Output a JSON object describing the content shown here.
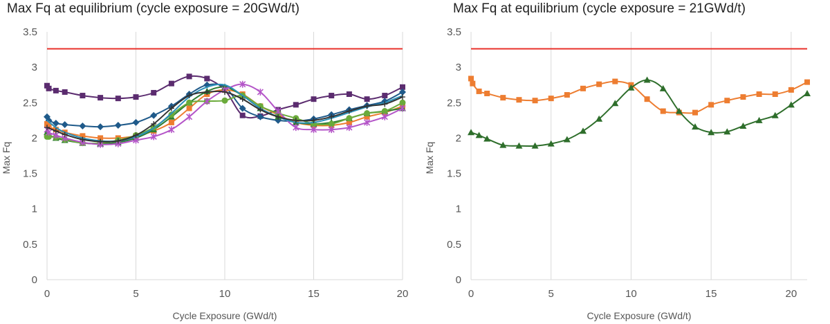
{
  "chart_data": [
    {
      "type": "line",
      "title": "Max Fq at equilibrium (cycle exposure = 20GWd/t)",
      "xlabel": "Cycle Exposure (GWd/t)",
      "ylabel": "Max Fq",
      "xlim": [
        0,
        20
      ],
      "ylim": [
        0,
        3.5
      ],
      "xticks": [
        "0",
        "5",
        "10",
        "15",
        "20"
      ],
      "yticks": [
        "0",
        "0.5",
        "1",
        "1.5",
        "2",
        "2.5",
        "3",
        "3.5"
      ],
      "grid": "vertical",
      "limit_line": {
        "y": 3.26,
        "color": "#e8302a"
      },
      "series": [
        {
          "color": "#5b2c6f",
          "marker": "square",
          "x": [
            0,
            0.1,
            0.5,
            1,
            2,
            3,
            4,
            5,
            6,
            7,
            8,
            9,
            10,
            11,
            12,
            13,
            14,
            15,
            16,
            17,
            18,
            19,
            20
          ],
          "y": [
            2.74,
            2.7,
            2.67,
            2.65,
            2.6,
            2.57,
            2.56,
            2.58,
            2.64,
            2.77,
            2.87,
            2.84,
            2.68,
            2.32,
            2.31,
            2.4,
            2.47,
            2.55,
            2.6,
            2.62,
            2.55,
            2.6,
            2.72
          ]
        },
        {
          "color": "#1f5a8a",
          "marker": "diamond",
          "x": [
            0,
            0.1,
            0.5,
            1,
            2,
            3,
            4,
            5,
            6,
            7,
            8,
            9,
            10,
            11,
            12,
            13,
            14,
            15,
            16,
            17,
            18,
            19,
            20
          ],
          "y": [
            2.3,
            2.25,
            2.21,
            2.19,
            2.17,
            2.16,
            2.18,
            2.22,
            2.32,
            2.45,
            2.62,
            2.75,
            2.72,
            2.42,
            2.3,
            2.25,
            2.24,
            2.27,
            2.33,
            2.4,
            2.46,
            2.52,
            2.65
          ]
        },
        {
          "color": "#ed7d31",
          "marker": "square",
          "x": [
            0,
            0.1,
            0.5,
            1,
            2,
            3,
            4,
            5,
            6,
            7,
            8,
            9,
            10,
            11,
            12,
            13,
            14,
            15,
            16,
            17,
            18,
            19,
            20
          ],
          "y": [
            2.2,
            2.16,
            2.12,
            2.08,
            2.03,
            2.0,
            2.0,
            2.03,
            2.1,
            2.22,
            2.42,
            2.62,
            2.68,
            2.62,
            2.45,
            2.33,
            2.22,
            2.18,
            2.18,
            2.22,
            2.3,
            2.36,
            2.45
          ]
        },
        {
          "color": "#2e7d32",
          "marker": "triangle",
          "x": [
            0,
            0.1,
            0.5,
            1,
            2,
            3,
            4,
            5,
            6,
            7,
            8,
            9,
            10,
            11,
            12,
            13,
            14,
            15,
            16,
            17,
            18,
            19,
            20
          ],
          "y": [
            2.08,
            2.05,
            2.0,
            1.97,
            1.93,
            1.92,
            1.94,
            2.0,
            2.12,
            2.3,
            2.5,
            2.66,
            2.72,
            2.6,
            2.42,
            2.3,
            2.22,
            2.2,
            2.22,
            2.28,
            2.35,
            2.38,
            2.42
          ]
        },
        {
          "color": "#6aaa3a",
          "marker": "circle",
          "x": [
            0,
            0.1,
            0.5,
            1,
            2,
            3,
            4,
            5,
            6,
            7,
            8,
            9,
            10,
            11,
            12,
            13,
            14,
            15,
            16,
            17,
            18,
            19,
            20
          ],
          "y": [
            2.02,
            2.02,
            2.01,
            1.98,
            1.93,
            1.93,
            1.97,
            2.04,
            2.15,
            2.33,
            2.5,
            2.52,
            2.53,
            2.6,
            2.45,
            2.35,
            2.28,
            2.2,
            2.2,
            2.28,
            2.35,
            2.38,
            2.5
          ]
        },
        {
          "color": "#b455c8",
          "marker": "star",
          "x": [
            0,
            0.1,
            0.5,
            1,
            2,
            3,
            4,
            5,
            6,
            7,
            8,
            9,
            10,
            11,
            12,
            13,
            14,
            15,
            16,
            17,
            18,
            19,
            20
          ],
          "y": [
            2.12,
            2.08,
            2.04,
            2.0,
            1.94,
            1.91,
            1.92,
            1.97,
            2.02,
            2.12,
            2.3,
            2.52,
            2.68,
            2.76,
            2.65,
            2.38,
            2.15,
            2.12,
            2.12,
            2.15,
            2.22,
            2.3,
            2.42
          ]
        },
        {
          "color": "#2a8fb8",
          "marker": "none",
          "x": [
            0,
            0.5,
            1,
            2,
            3,
            4,
            5,
            6,
            7,
            8,
            9,
            10,
            11,
            12,
            13,
            14,
            15,
            16,
            17,
            18,
            19,
            20
          ],
          "y": [
            2.25,
            2.15,
            2.08,
            2.0,
            1.96,
            1.96,
            2.02,
            2.14,
            2.35,
            2.58,
            2.72,
            2.75,
            2.6,
            2.42,
            2.3,
            2.22,
            2.22,
            2.28,
            2.36,
            2.44,
            2.5,
            2.6
          ]
        },
        {
          "color": "#333333",
          "marker": "plus",
          "x": [
            0,
            0.5,
            1,
            2,
            3,
            4,
            5,
            6,
            7,
            8,
            9,
            10,
            11,
            12,
            13,
            14,
            15,
            16,
            17,
            18,
            19,
            20
          ],
          "y": [
            2.15,
            2.1,
            2.05,
            1.98,
            1.95,
            1.96,
            2.04,
            2.2,
            2.42,
            2.6,
            2.65,
            2.65,
            2.55,
            2.4,
            2.3,
            2.25,
            2.25,
            2.3,
            2.38,
            2.45,
            2.48,
            2.58
          ]
        }
      ]
    },
    {
      "type": "line",
      "title": "Max Fq at equilibrium (cycle exposure = 21GWd/t)",
      "xlabel": "Cycle Exposure (GWd/t)",
      "ylabel": "Max Fq",
      "xlim": [
        0,
        21
      ],
      "ylim": [
        0,
        3.5
      ],
      "xticks": [
        "0",
        "5",
        "10",
        "15",
        "20"
      ],
      "yticks": [
        "0",
        "0.5",
        "1",
        "1.5",
        "2",
        "2.5",
        "3",
        "3.5"
      ],
      "grid": "vertical",
      "limit_line": {
        "y": 3.26,
        "color": "#e8302a"
      },
      "series": [
        {
          "color": "#ed7d31",
          "marker": "square",
          "x": [
            0,
            0.1,
            0.5,
            1,
            2,
            3,
            4,
            5,
            6,
            7,
            8,
            9,
            10,
            11,
            12,
            13,
            14,
            15,
            16,
            17,
            18,
            19,
            20,
            21
          ],
          "y": [
            2.84,
            2.77,
            2.66,
            2.63,
            2.57,
            2.54,
            2.53,
            2.56,
            2.61,
            2.7,
            2.76,
            2.8,
            2.75,
            2.55,
            2.38,
            2.36,
            2.36,
            2.47,
            2.53,
            2.58,
            2.62,
            2.62,
            2.68,
            2.79
          ]
        },
        {
          "color": "#2e6e2b",
          "marker": "triangle",
          "x": [
            0,
            0.5,
            1,
            2,
            3,
            4,
            5,
            6,
            7,
            8,
            9,
            10,
            11,
            12,
            13,
            14,
            15,
            16,
            17,
            18,
            19,
            20,
            21
          ],
          "y": [
            2.08,
            2.04,
            1.99,
            1.9,
            1.89,
            1.89,
            1.92,
            1.98,
            2.1,
            2.27,
            2.49,
            2.71,
            2.82,
            2.7,
            2.38,
            2.16,
            2.08,
            2.09,
            2.17,
            2.25,
            2.32,
            2.47,
            2.63
          ]
        }
      ]
    }
  ]
}
